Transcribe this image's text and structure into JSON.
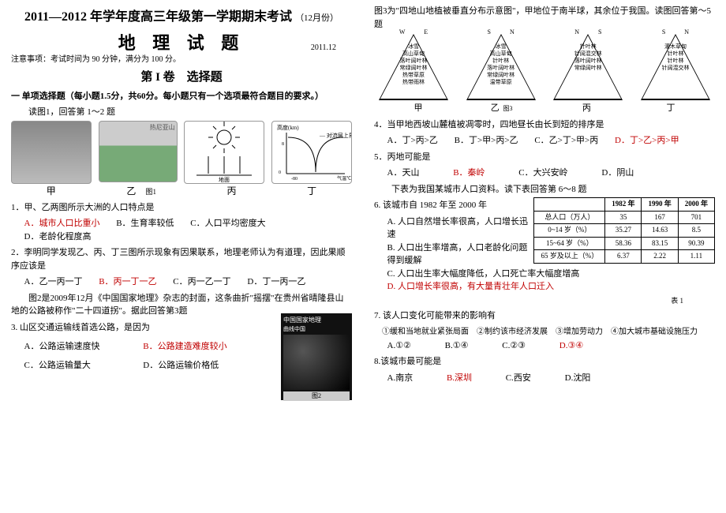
{
  "header": {
    "main_title": "2011—2012 年学年度高三年级第一学期期末考试",
    "month_note": "（12月份）",
    "subject": "地 理 试 题",
    "date": "2011.12",
    "notice": "注意事项：考试时间为 90 分钟，满分为 100 分。",
    "section1": "第 I 卷　选择题",
    "mcq_intro": "一 单项选择题（每小题1.5分，共60分。每小题只有一个选项最符合题目的要求。）"
  },
  "left": {
    "fig1_intro": "读图1，回答第 1～2 题",
    "fig1_labels": [
      "甲",
      "乙",
      "丙",
      "丁"
    ],
    "fig1_caption": "图1",
    "q1": {
      "stem": "1．甲、乙两图所示大洲的人口特点是",
      "opts": [
        "A．城市人口比重小",
        "B．生育率较低",
        "C．人口平均密度大",
        "D．老龄化程度高"
      ],
      "ans_index": 0
    },
    "q2": {
      "stem": "2．李明同学发现乙、丙、丁三图所示现象有因果联系，地理老师认为有道理，因此果顺序应该是",
      "opts": [
        "A．乙一丙一丁",
        "B．丙一丁一乙",
        "C．丙一乙一丁",
        "D．丁一丙一乙"
      ],
      "ans_index": 1
    },
    "fig2_intro": "图2是2009年12月《中国国家地理》杂志的封面，这条曲折\"摇摆\"在贵州省晴隆县山地的公路被称作\"二十四道拐\"。据此回答第3题",
    "q3": {
      "stem": "3. 山区交通运输线首选公路，是因为",
      "opts": [
        "A．公路运输速度快",
        "B．公路建造难度较小",
        "C．公路运输量大",
        "D．公路运输价格低"
      ],
      "ans_index": 1
    },
    "fig2_caption": "图2",
    "mag_title": "中国国家地理",
    "mag_sub": "曲线中国"
  },
  "right": {
    "fig3_intro": "图3为\"四地山地植被垂直分布示意图\"，甲地位于南半球，其余位于我国。读图回答第～5题",
    "pyramids": [
      {
        "top_left": "W",
        "top_right": "E",
        "name": "甲",
        "bands": [
          "冰雪",
          "高山草甸",
          "落叶阔叶林",
          "常绿阔叶林",
          "热带草原",
          "热带雨林"
        ]
      },
      {
        "top_left": "S",
        "top_right": "N",
        "name": "乙",
        "bands": [
          "冰雪",
          "高山草甸",
          "针叶林",
          "落叶阔叶林",
          "常绿阔叶林",
          "温带草原"
        ]
      },
      {
        "top_left": "N",
        "top_right": "S",
        "name": "丙",
        "bands": [
          "针叶林",
          "针阔混交林",
          "落叶阔叶林",
          "常绿阔叶林"
        ]
      },
      {
        "top_left": "S",
        "top_right": "N",
        "name": "丁",
        "bands": [
          "灌木草甸",
          "针叶林",
          "针叶林",
          "针阔混交林"
        ]
      }
    ],
    "fig3_caption": "图3",
    "q4": {
      "stem": "4．当甲地西坡山麓植被凋零时，四地昼长由长到短的排序是",
      "opts": [
        "A．丁>丙>乙",
        "B．丁>甲>丙>乙",
        "C．乙>丁>甲>丙",
        "D．丁>乙>丙>甲"
      ],
      "ans_index": 3
    },
    "q5": {
      "stem": "5．丙地可能是",
      "opts": [
        "A．天山",
        "B．秦岭",
        "C．大兴安岭",
        "D．阴山"
      ],
      "ans_index": 1
    },
    "tbl_intro": "下表为我国某城市人口资料。读下表回答第 6～8 题",
    "table": {
      "cols": [
        "",
        "1982 年",
        "1990 年",
        "2000 年"
      ],
      "rows": [
        [
          "总人口（万人）",
          "35",
          "167",
          "701"
        ],
        [
          "0~14 岁（%）",
          "35.27",
          "14.63",
          "8.5"
        ],
        [
          "15~64 岁（%）",
          "58.36",
          "83.15",
          "90.39"
        ],
        [
          "65 岁及以上（%）",
          "6.37",
          "2.22",
          "1.11"
        ]
      ],
      "caption": "表 1"
    },
    "q6": {
      "stem": "6. 该城市自 1982 年至 2000 年",
      "opts": [
        "A. 人口自然增长率很高，人口增长迅速",
        "B. 人口出生率增高，人口老龄化问题得到缓解",
        "C. 人口出生率大幅度降低，人口死亡率大幅度增高",
        "D. 人口增长率很高，有大量青壮年人口迁入"
      ],
      "ans_index": 3
    },
    "q7": {
      "stem": "7. 该人口变化可能带来的影响有",
      "line": "①缓和当地就业紧张局面　②制约该市经济发展　③增加劳动力　④加大城市基础设施压力",
      "opts": [
        "A.①②",
        "B.①④",
        "C.②③",
        "D.③④"
      ],
      "ans_index": 3
    },
    "q8": {
      "stem": "8.该城市最可能是",
      "opts": [
        "A.南京",
        "B.深圳",
        "C.西安",
        "D.沈阳"
      ],
      "ans_index": 1
    }
  }
}
